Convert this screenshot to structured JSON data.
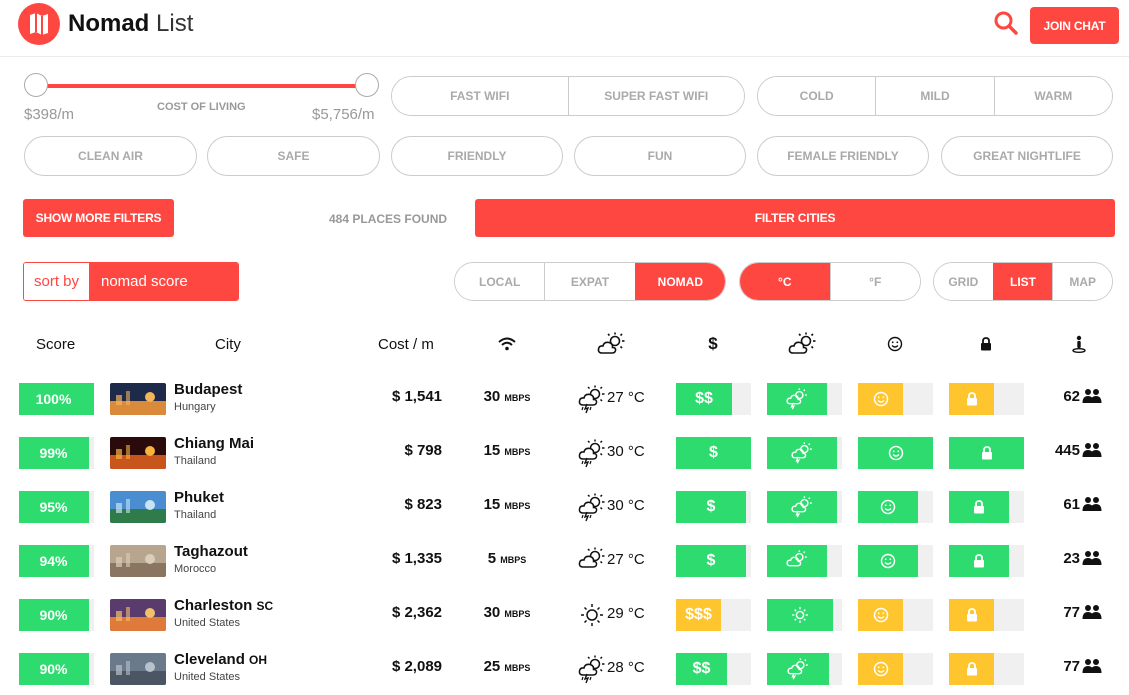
{
  "header": {
    "brand_bold": "Nomad",
    "brand_light": "List",
    "join_chat": "JOIN CHAT"
  },
  "filters": {
    "cost_caption": "COST OF LIVING",
    "cost_min": "$398/m",
    "cost_max": "$5,756/m",
    "wifi": [
      "FAST WIFI",
      "SUPER FAST WIFI"
    ],
    "climate": [
      "COLD",
      "MILD",
      "WARM"
    ],
    "tags": [
      "CLEAN AIR",
      "SAFE",
      "FRIENDLY",
      "FUN",
      "FEMALE FRIENDLY",
      "GREAT NIGHTLIFE"
    ],
    "show_more": "SHOW MORE FILTERS",
    "places_found": "484 PLACES FOUND",
    "filter_cities": "FILTER CITIES"
  },
  "controls": {
    "sort_label": "sort by",
    "sort_value": "nomad score",
    "audience": [
      {
        "label": "LOCAL",
        "active": false
      },
      {
        "label": "EXPAT",
        "active": false
      },
      {
        "label": "NOMAD",
        "active": true
      }
    ],
    "units": [
      {
        "label": "°C",
        "active": true
      },
      {
        "label": "°F",
        "active": false
      }
    ],
    "views": [
      {
        "label": "GRID",
        "active": false
      },
      {
        "label": "LIST",
        "active": true
      },
      {
        "label": "MAP",
        "active": false
      }
    ]
  },
  "table": {
    "headers": {
      "score": "Score",
      "city": "City",
      "cost": "Cost / m"
    },
    "header_icons": [
      "wifi-icon",
      "weather-icon",
      "dollar-icon",
      "weather-icon",
      "smiley-icon",
      "lock-icon",
      "person-icon"
    ],
    "colors": {
      "green": "#2edb6f",
      "yellow": "#ffc52e",
      "red": "#ff4742",
      "empty": "#f0f0f0"
    },
    "rows": [
      {
        "score": "100%",
        "score_value": 1.0,
        "city": "Budapest",
        "state": "",
        "country": "Hungary",
        "cost": "$ 1,541",
        "wifi": "30",
        "wifi_unit": "MBPS",
        "weather_icon": "storm-sun-icon",
        "temp": "27 °C",
        "cost_rating": "$$",
        "cost_level": 0.75,
        "cost_color": "green",
        "weather_level": 0.8,
        "fun_level": 0.6,
        "fun_color": "yellow",
        "safety_level": 0.6,
        "safety_color": "yellow",
        "pop": "62"
      },
      {
        "score": "99%",
        "score_value": 0.93,
        "city": "Chiang Mai",
        "state": "",
        "country": "Thailand",
        "cost": "$ 798",
        "wifi": "15",
        "wifi_unit": "MBPS",
        "weather_icon": "storm-sun-icon",
        "temp": "30 °C",
        "cost_rating": "$",
        "cost_level": 1.0,
        "cost_color": "green",
        "weather_level": 0.93,
        "fun_level": 1.0,
        "fun_color": "green",
        "safety_level": 1.0,
        "safety_color": "green",
        "pop": "445"
      },
      {
        "score": "95%",
        "score_value": 0.93,
        "city": "Phuket",
        "state": "",
        "country": "Thailand",
        "cost": "$ 823",
        "wifi": "15",
        "wifi_unit": "MBPS",
        "weather_icon": "storm-sun-icon",
        "temp": "30 °C",
        "cost_rating": "$",
        "cost_level": 0.93,
        "cost_color": "green",
        "weather_level": 0.93,
        "fun_level": 0.8,
        "fun_color": "green",
        "safety_level": 0.8,
        "safety_color": "green",
        "pop": "61"
      },
      {
        "score": "94%",
        "score_value": 0.93,
        "city": "Taghazout",
        "state": "",
        "country": "Morocco",
        "cost": "$ 1,335",
        "wifi": "5",
        "wifi_unit": "MBPS",
        "weather_icon": "cloud-sun-icon",
        "temp": "27 °C",
        "cost_rating": "$",
        "cost_level": 0.93,
        "cost_color": "green",
        "weather_level": 0.8,
        "fun_level": 0.8,
        "fun_color": "green",
        "safety_level": 0.8,
        "safety_color": "green",
        "pop": "23"
      },
      {
        "score": "90%",
        "score_value": 0.93,
        "city": "Charleston",
        "state": "SC",
        "country": "United States",
        "cost": "$ 2,362",
        "wifi": "30",
        "wifi_unit": "MBPS",
        "weather_icon": "sun-icon",
        "temp": "29 °C",
        "cost_rating": "$$$",
        "cost_level": 0.6,
        "cost_color": "yellow",
        "weather_level": 0.88,
        "fun_level": 0.6,
        "fun_color": "yellow",
        "safety_level": 0.6,
        "safety_color": "yellow",
        "pop": "77"
      },
      {
        "score": "90%",
        "score_value": 0.93,
        "city": "Cleveland",
        "state": "OH",
        "country": "United States",
        "cost": "$ 2,089",
        "wifi": "25",
        "wifi_unit": "MBPS",
        "weather_icon": "storm-sun-icon",
        "temp": "28 °C",
        "cost_rating": "$$",
        "cost_level": 0.68,
        "cost_color": "green",
        "weather_level": 0.83,
        "fun_level": 0.6,
        "fun_color": "yellow",
        "safety_level": 0.6,
        "safety_color": "yellow",
        "pop": "77"
      }
    ]
  }
}
